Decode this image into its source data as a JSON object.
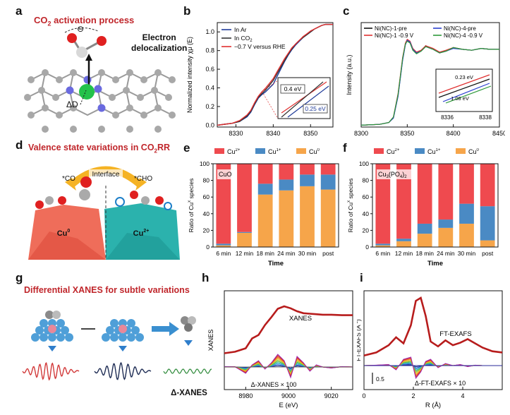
{
  "labels": {
    "a": "a",
    "b": "b",
    "c": "c",
    "d": "d",
    "e": "e",
    "f": "f",
    "g": "g",
    "h": "h",
    "i": "i"
  },
  "panel_a": {
    "title_pre": "CO",
    "title_sub": "2",
    "title_post": "  activation process",
    "minus": "⊖",
    "annot_line1": "Electron",
    "annot_line2": "delocalization",
    "delta_d": "ΔD"
  },
  "panel_d": {
    "title_pre": "Valence state variations in CO",
    "title_sub": "2",
    "title_post": "RR",
    "interface": "Interface",
    "co": "*CO",
    "cho": "*CHO",
    "cu0": "Cu",
    "cu0_sup": "0",
    "cu2": "Cu",
    "cu2_sup": "2+"
  },
  "panel_g": {
    "title": "Differential XANES for subtle variations",
    "dxanes": "Δ-XANES"
  },
  "chart_data": [
    {
      "id": "b",
      "type": "line",
      "xlabel": "Energy (eV)",
      "ylabel": "Normalized intensity χμ (E)",
      "xlim": [
        8325,
        8356
      ],
      "ylim": [
        -0.02,
        1.1
      ],
      "xticks": [
        8330,
        8340,
        8350
      ],
      "yticks": [
        0.0,
        0.2,
        0.4,
        0.6,
        0.8,
        1.0
      ],
      "ytick_labels": [
        "0.0",
        "0.2",
        "0.4",
        "0.6",
        "0.8",
        "1.0"
      ],
      "legend": [
        "In Ar",
        "In CO",
        "−0.7 V versus RHE"
      ],
      "legend_sub": "2",
      "series_colors": [
        "#1f3b99",
        "#333333",
        "#e03030"
      ],
      "x": [
        8325,
        8327,
        8329,
        8331,
        8333,
        8334,
        8335,
        8336,
        8337,
        8338,
        8339,
        8340,
        8341,
        8342,
        8343,
        8344,
        8345,
        8346,
        8347,
        8348,
        8349,
        8350,
        8351,
        8352,
        8353,
        8354,
        8355,
        8356
      ],
      "series": [
        {
          "values": [
            0.0,
            0.01,
            0.02,
            0.04,
            0.09,
            0.14,
            0.22,
            0.29,
            0.33,
            0.36,
            0.4,
            0.44,
            0.52,
            0.6,
            0.68,
            0.75,
            0.81,
            0.86,
            0.9,
            0.94,
            0.97,
            1.0,
            1.03,
            1.05,
            1.07,
            1.08,
            1.08,
            1.08
          ]
        },
        {
          "values": [
            0.0,
            0.01,
            0.02,
            0.04,
            0.1,
            0.15,
            0.23,
            0.3,
            0.34,
            0.38,
            0.43,
            0.48,
            0.55,
            0.62,
            0.69,
            0.76,
            0.82,
            0.87,
            0.91,
            0.94,
            0.97,
            1.0,
            1.03,
            1.05,
            1.07,
            1.08,
            1.08,
            1.08
          ]
        },
        {
          "values": [
            0.0,
            0.01,
            0.02,
            0.05,
            0.11,
            0.16,
            0.24,
            0.31,
            0.36,
            0.4,
            0.45,
            0.5,
            0.57,
            0.64,
            0.71,
            0.77,
            0.83,
            0.87,
            0.91,
            0.95,
            0.98,
            1.01,
            1.03,
            1.05,
            1.07,
            1.08,
            1.08,
            1.08
          ]
        }
      ],
      "inset": {
        "label_top": "0.4 eV",
        "label_bottom": "0.25 eV"
      }
    },
    {
      "id": "c",
      "type": "line",
      "xlabel": "Energy (eV)",
      "ylabel": "Intensity (a.u.)",
      "xlim": [
        8300,
        8450
      ],
      "xticks": [
        8300,
        8350,
        8400,
        8450
      ],
      "legend": [
        "Ni(NC)-1-pre",
        "Ni(NC)-1 -0.9 V",
        "Ni(NC)-4-pre",
        "Ni(NC)-4 -0.9 V"
      ],
      "series_colors": [
        "#111111",
        "#e03030",
        "#2b3fcf",
        "#2e9a3a"
      ],
      "x": [
        8300,
        8320,
        8330,
        8335,
        8340,
        8345,
        8348,
        8350,
        8353,
        8356,
        8360,
        8365,
        8370,
        8378,
        8385,
        8392,
        8400,
        8410,
        8420,
        8430,
        8440,
        8450
      ],
      "series": [
        {
          "values": [
            0.02,
            0.03,
            0.05,
            0.1,
            0.35,
            0.75,
            0.92,
            0.96,
            0.94,
            0.86,
            0.82,
            0.84,
            0.9,
            0.86,
            0.82,
            0.84,
            0.88,
            0.86,
            0.85,
            0.87,
            0.86,
            0.86
          ]
        },
        {
          "values": [
            0.02,
            0.03,
            0.05,
            0.11,
            0.37,
            0.77,
            0.93,
            0.97,
            0.95,
            0.87,
            0.83,
            0.85,
            0.9,
            0.87,
            0.83,
            0.85,
            0.88,
            0.86,
            0.85,
            0.87,
            0.86,
            0.86
          ]
        },
        {
          "values": [
            0.02,
            0.03,
            0.05,
            0.1,
            0.34,
            0.74,
            0.91,
            0.96,
            0.94,
            0.86,
            0.82,
            0.84,
            0.89,
            0.86,
            0.82,
            0.84,
            0.87,
            0.86,
            0.85,
            0.87,
            0.86,
            0.86
          ]
        },
        {
          "values": [
            0.02,
            0.03,
            0.05,
            0.11,
            0.36,
            0.76,
            0.92,
            0.95,
            0.93,
            0.85,
            0.81,
            0.84,
            0.89,
            0.86,
            0.82,
            0.84,
            0.88,
            0.86,
            0.85,
            0.87,
            0.86,
            0.86
          ]
        }
      ],
      "inset": {
        "label_top": "0.23 eV",
        "label_bottom": "1.08 eV",
        "xticks": [
          "8336",
          "8338"
        ]
      }
    },
    {
      "id": "e",
      "type": "bar",
      "stacked": true,
      "annotation": "CuO",
      "xlabel": "Time",
      "ylabel": "Ratio of Cu",
      "ylabel_sup": "x",
      "ylabel_post": " species",
      "ylim": [
        0,
        100
      ],
      "yticks": [
        0,
        20,
        40,
        60,
        80,
        100
      ],
      "categories": [
        "6 min",
        "12 min",
        "18 min",
        "24 min",
        "30 min",
        "post"
      ],
      "legend": [
        {
          "base": "Cu",
          "sup": "2+"
        },
        {
          "base": "Cu",
          "sup": "1+"
        },
        {
          "base": "Cu",
          "sup": "0"
        }
      ],
      "series_colors": [
        "#ef4a4f",
        "#4a8ac4",
        "#f6a54a"
      ],
      "series": [
        {
          "name": "Cu2+",
          "values": [
            96,
            82,
            24,
            19,
            13,
            13
          ]
        },
        {
          "name": "Cu1+",
          "values": [
            2,
            1,
            13,
            13,
            14,
            18
          ]
        },
        {
          "name": "Cu0",
          "values": [
            2,
            17,
            63,
            68,
            73,
            69
          ]
        }
      ]
    },
    {
      "id": "f",
      "type": "bar",
      "stacked": true,
      "annotation_pre": "Cu",
      "annotation_sub1": "3",
      "annotation_mid": "(PO",
      "annotation_sub2": "4",
      "annotation_post": ")",
      "annotation_sub3": "2",
      "xlabel": "Time",
      "ylabel": "Ratio of Cu",
      "ylabel_sup": "x",
      "ylabel_post": " species",
      "ylim": [
        0,
        100
      ],
      "yticks": [
        0,
        20,
        40,
        60,
        80,
        100
      ],
      "categories": [
        "6 min",
        "12 min",
        "18 min",
        "24 min",
        "30 min",
        "post"
      ],
      "legend": [
        {
          "base": "Cu",
          "sup": "2+"
        },
        {
          "base": "Cu",
          "sup": "1+"
        },
        {
          "base": "Cu",
          "sup": "0"
        }
      ],
      "series_colors": [
        "#ef4a4f",
        "#4a8ac4",
        "#f6a54a"
      ],
      "series": [
        {
          "name": "Cu2+",
          "values": [
            96,
            90,
            72,
            67,
            48,
            51
          ]
        },
        {
          "name": "Cu1+",
          "values": [
            2,
            3,
            12,
            10,
            24,
            41
          ]
        },
        {
          "name": "Cu0",
          "values": [
            2,
            7,
            16,
            23,
            28,
            8
          ]
        }
      ]
    },
    {
      "id": "h",
      "type": "line",
      "xlabel": "E (eV)",
      "ylabel": "XANES",
      "xlim": [
        8970,
        9030
      ],
      "xticks": [
        8980,
        9000,
        9020
      ],
      "label_main": "XANES",
      "label_diff": "Δ-XANES × 100",
      "main_color": "#b71c1c",
      "x": [
        8970,
        8975,
        8980,
        8983,
        8986,
        8989,
        8992,
        8995,
        8998,
        9001,
        9004,
        9007,
        9010,
        9013,
        9016,
        9020,
        9025,
        9030
      ],
      "main": [
        0.05,
        0.08,
        0.15,
        0.35,
        0.42,
        0.62,
        0.78,
        0.95,
        1.0,
        0.96,
        0.9,
        0.86,
        0.85,
        0.84,
        0.83,
        0.83,
        0.82,
        0.82
      ],
      "diff_base": [
        0.02,
        0.01,
        -0.3,
        0.1,
        0.3,
        -0.1,
        0.2,
        0.6,
        0.3,
        -0.5,
        0.5,
        0.2,
        -0.2,
        0.1,
        0.0,
        -0.05,
        0.02,
        0.0
      ]
    },
    {
      "id": "i",
      "type": "line",
      "xlabel": "R (Å)",
      "ylabel": "FT-EXAFS (Å",
      "ylabel_sup": "-3",
      "ylabel_post": ")",
      "xlim": [
        0,
        5.6
      ],
      "xticks": [
        0,
        2,
        4
      ],
      "label_main": "FT-EXAFS",
      "label_diff": "Δ-FT-EXAFS × 10",
      "scale_label": "0.5",
      "main_color": "#b71c1c",
      "x": [
        0,
        0.5,
        1.0,
        1.3,
        1.6,
        1.9,
        2.1,
        2.3,
        2.5,
        2.7,
        3.0,
        3.3,
        3.6,
        3.9,
        4.2,
        4.5,
        4.8,
        5.2,
        5.6
      ],
      "main": [
        0.05,
        0.1,
        0.22,
        0.35,
        0.25,
        0.55,
        0.95,
        1.0,
        0.7,
        0.28,
        0.2,
        0.3,
        0.22,
        0.26,
        0.32,
        0.25,
        0.18,
        0.12,
        0.1
      ],
      "diff_base": [
        0.0,
        0.02,
        0.05,
        -0.2,
        0.3,
        0.4,
        -0.6,
        -0.3,
        0.2,
        0.3,
        -0.1,
        0.1,
        0.0,
        0.05,
        -0.05,
        0.02,
        0.0,
        0.0,
        0.0
      ]
    }
  ]
}
